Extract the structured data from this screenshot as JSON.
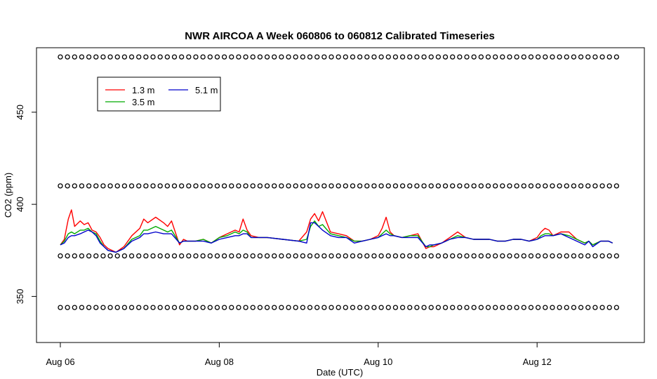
{
  "chart_data": {
    "type": "line",
    "title": "NWR AIRCOA A  Week 060806 to 060812  Calibrated Timeseries",
    "xlabel": "Date (UTC)",
    "ylabel": "CO2 (ppm)",
    "xlim": [
      -0.3,
      7.35
    ],
    "ylim": [
      325,
      485
    ],
    "x_ticks": [
      {
        "value": 0,
        "label": "Aug 06"
      },
      {
        "value": 2,
        "label": "Aug 08"
      },
      {
        "value": 4,
        "label": "Aug 10"
      },
      {
        "value": 6,
        "label": "Aug 12"
      }
    ],
    "y_ticks": [
      {
        "value": 350,
        "label": "350"
      },
      {
        "value": 400,
        "label": "400"
      },
      {
        "value": 450,
        "label": "450"
      }
    ],
    "grid": false,
    "legend": {
      "placement": "top-left",
      "entries": [
        {
          "label": "1.3 m",
          "color": "#ff0000"
        },
        {
          "label": "5.1 m",
          "color": "#0000cc"
        },
        {
          "label": "3.5 m",
          "color": "#00aa00"
        }
      ]
    },
    "reference_markers": {
      "symbol": "open-circle",
      "levels": [
        480,
        410,
        372,
        344
      ],
      "x_start": 0.0,
      "x_end": 7.0
    },
    "series": [
      {
        "name": "1.3 m",
        "color": "#ff0000",
        "x": [
          0.0,
          0.05,
          0.1,
          0.14,
          0.18,
          0.25,
          0.3,
          0.35,
          0.4,
          0.45,
          0.5,
          0.55,
          0.6,
          0.7,
          0.8,
          0.9,
          1.0,
          1.05,
          1.1,
          1.2,
          1.3,
          1.35,
          1.4,
          1.5,
          1.55,
          1.6,
          1.7,
          1.8,
          1.9,
          2.0,
          2.1,
          2.2,
          2.25,
          2.3,
          2.35,
          2.4,
          2.5,
          2.6,
          2.8,
          3.0,
          3.1,
          3.15,
          3.2,
          3.25,
          3.3,
          3.4,
          3.5,
          3.6,
          3.7,
          3.8,
          3.9,
          4.0,
          4.05,
          4.1,
          4.15,
          4.2,
          4.3,
          4.4,
          4.5,
          4.6,
          4.65,
          4.7,
          4.8,
          4.9,
          5.0,
          5.1,
          5.2,
          5.3,
          5.4,
          5.5,
          5.6,
          5.7,
          5.8,
          5.9,
          6.0,
          6.05,
          6.1,
          6.15,
          6.2,
          6.3,
          6.4,
          6.5,
          6.6,
          6.65,
          6.7,
          6.8,
          6.9,
          6.95
        ],
        "values": [
          378,
          381,
          392,
          397,
          388,
          391,
          389,
          390,
          386,
          385,
          382,
          378,
          376,
          374,
          377,
          383,
          387,
          392,
          390,
          393,
          390,
          388,
          391,
          378,
          381,
          380,
          380,
          381,
          379,
          382,
          384,
          386,
          385,
          392,
          386,
          383,
          382,
          382,
          381,
          380,
          385,
          392,
          395,
          391,
          396,
          385,
          384,
          383,
          380,
          380,
          381,
          383,
          387,
          393,
          385,
          383,
          382,
          383,
          384,
          376,
          377,
          377,
          379,
          382,
          385,
          382,
          381,
          381,
          381,
          380,
          380,
          381,
          381,
          380,
          382,
          385,
          387,
          386,
          383,
          385,
          385,
          381,
          379,
          380,
          378,
          380,
          380,
          379
        ]
      },
      {
        "name": "3.5 m",
        "color": "#00aa00",
        "x": [
          0.0,
          0.05,
          0.1,
          0.14,
          0.18,
          0.25,
          0.3,
          0.35,
          0.4,
          0.45,
          0.5,
          0.55,
          0.6,
          0.7,
          0.8,
          0.9,
          1.0,
          1.05,
          1.1,
          1.2,
          1.3,
          1.35,
          1.4,
          1.5,
          1.55,
          1.6,
          1.7,
          1.8,
          1.9,
          2.0,
          2.1,
          2.2,
          2.25,
          2.3,
          2.35,
          2.4,
          2.5,
          2.6,
          2.8,
          3.0,
          3.1,
          3.15,
          3.2,
          3.25,
          3.3,
          3.4,
          3.5,
          3.6,
          3.7,
          3.8,
          3.9,
          4.0,
          4.05,
          4.1,
          4.15,
          4.2,
          4.3,
          4.4,
          4.5,
          4.6,
          4.65,
          4.7,
          4.8,
          4.9,
          5.0,
          5.1,
          5.2,
          5.3,
          5.4,
          5.5,
          5.6,
          5.7,
          5.8,
          5.9,
          6.0,
          6.05,
          6.1,
          6.15,
          6.2,
          6.3,
          6.4,
          6.5,
          6.6,
          6.65,
          6.7,
          6.8,
          6.9,
          6.95
        ],
        "values": [
          378,
          380,
          384,
          385,
          384,
          386,
          386,
          387,
          385,
          384,
          380,
          377,
          375,
          374,
          376,
          381,
          383,
          386,
          386,
          388,
          386,
          385,
          386,
          379,
          380,
          380,
          380,
          381,
          379,
          382,
          383,
          385,
          384,
          386,
          385,
          382,
          382,
          382,
          381,
          380,
          381,
          388,
          391,
          388,
          389,
          384,
          383,
          382,
          380,
          380,
          381,
          382,
          384,
          386,
          384,
          383,
          382,
          383,
          383,
          377,
          377,
          378,
          379,
          381,
          383,
          382,
          381,
          381,
          381,
          380,
          380,
          381,
          381,
          380,
          381,
          383,
          384,
          384,
          383,
          384,
          383,
          381,
          379,
          380,
          378,
          380,
          380,
          379
        ]
      },
      {
        "name": "5.1 m",
        "color": "#0000cc",
        "x": [
          0.0,
          0.05,
          0.1,
          0.14,
          0.18,
          0.25,
          0.3,
          0.35,
          0.4,
          0.45,
          0.5,
          0.55,
          0.6,
          0.7,
          0.8,
          0.9,
          1.0,
          1.05,
          1.1,
          1.2,
          1.3,
          1.35,
          1.4,
          1.5,
          1.55,
          1.6,
          1.7,
          1.8,
          1.9,
          2.0,
          2.1,
          2.2,
          2.25,
          2.3,
          2.35,
          2.4,
          2.5,
          2.6,
          2.8,
          3.0,
          3.1,
          3.15,
          3.2,
          3.25,
          3.3,
          3.4,
          3.5,
          3.6,
          3.7,
          3.8,
          3.9,
          4.0,
          4.05,
          4.1,
          4.15,
          4.2,
          4.3,
          4.4,
          4.5,
          4.6,
          4.65,
          4.7,
          4.8,
          4.9,
          5.0,
          5.1,
          5.2,
          5.3,
          5.4,
          5.5,
          5.6,
          5.7,
          5.8,
          5.9,
          6.0,
          6.05,
          6.1,
          6.15,
          6.2,
          6.3,
          6.4,
          6.5,
          6.6,
          6.65,
          6.7,
          6.8,
          6.9,
          6.95
        ],
        "values": [
          378,
          379,
          382,
          383,
          383,
          384,
          385,
          386,
          385,
          383,
          379,
          377,
          375,
          374,
          376,
          380,
          382,
          384,
          384,
          385,
          384,
          384,
          384,
          379,
          380,
          380,
          380,
          380,
          379,
          381,
          382,
          383,
          383,
          384,
          384,
          382,
          382,
          382,
          381,
          380,
          379,
          390,
          390,
          388,
          386,
          383,
          382,
          382,
          379,
          380,
          381,
          382,
          383,
          384,
          383,
          383,
          382,
          382,
          382,
          377,
          378,
          378,
          379,
          381,
          382,
          382,
          381,
          381,
          381,
          380,
          380,
          381,
          381,
          380,
          381,
          382,
          383,
          383,
          383,
          384,
          382,
          380,
          378,
          380,
          377,
          380,
          380,
          379
        ]
      }
    ]
  }
}
